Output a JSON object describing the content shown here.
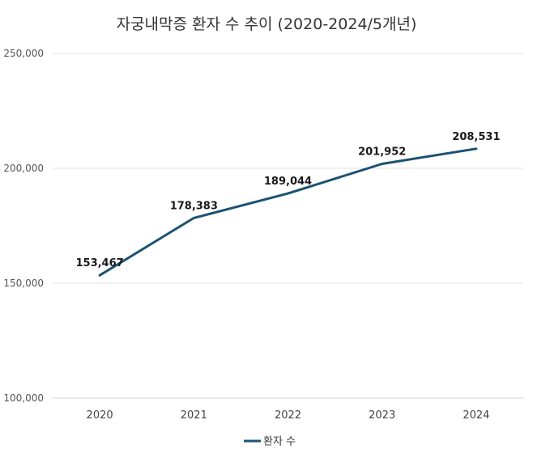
{
  "chart_data": {
    "type": "line",
    "title": "자궁내막증 환자 수 추이 (2020-2024/5개년)",
    "categories": [
      "2020",
      "2021",
      "2022",
      "2023",
      "2024"
    ],
    "series": [
      {
        "name": "환자 수",
        "values": [
          153467,
          178383,
          189044,
          201952,
          208531
        ],
        "labels": [
          "153,467",
          "178,383",
          "189,044",
          "201,952",
          "208,531"
        ]
      }
    ],
    "ylim": [
      100000,
      250000
    ],
    "yticks": [
      100000,
      150000,
      200000,
      250000
    ],
    "ytick_labels": [
      "100,000",
      "150,000",
      "200,000",
      "250,000"
    ],
    "grid": true,
    "legend": "bottom-center",
    "colors": {
      "line": "#1b5171"
    }
  }
}
